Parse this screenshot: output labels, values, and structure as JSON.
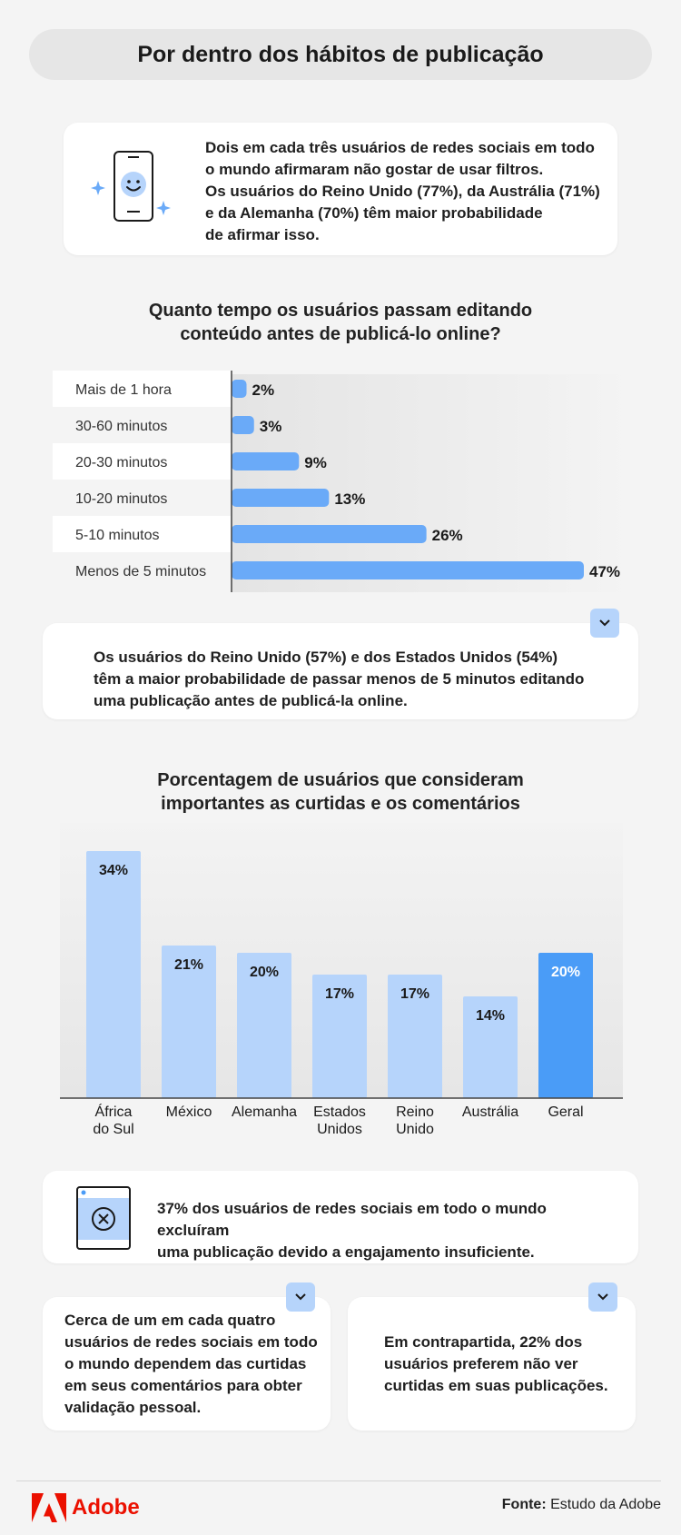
{
  "header": {
    "title": "Por dentro dos hábitos de publicação"
  },
  "intro": {
    "lines": [
      "Dois em cada três usuários de redes sociais em todo",
      "o mundo afirmaram não gostar de usar filtros.",
      "Os usuários do Reino Unido (77%), da Austrália (71%)",
      "e da Alemanha (70%) têm maior probabilidade",
      "de afirmar isso."
    ]
  },
  "editing_note": {
    "lines": [
      "Os usuários do Reino Unido (57%) e dos Estados Unidos (54%)",
      "têm a maior probabilidade de passar menos de 5 minutos editando",
      "uma publicação antes de publicá-la online."
    ]
  },
  "deletion": {
    "lines": [
      "37% dos usuários de redes sociais em todo o mundo excluíram",
      "uma publicação devido a engajamento insuficiente."
    ]
  },
  "validation": {
    "lines": [
      "Cerca de um em cada quatro",
      "usuários de redes sociais em todo",
      "o mundo dependem das curtidas",
      "em seus comentários para obter",
      "validação pessoal."
    ]
  },
  "preference": {
    "lines": [
      "Em contrapartida, 22% dos",
      "usuários preferem não ver",
      "curtidas em suas publicações."
    ]
  },
  "footer": {
    "brand": "Adobe",
    "source_label": "Fonte:",
    "source_value": "Estudo da Adobe"
  },
  "colors": {
    "bar_light": "#b6d4fb",
    "bar_accent": "#4a9cf7",
    "hbar": "#6aaaf8",
    "brand_red": "#eb1000"
  },
  "icons": [
    "phone-smile-icon",
    "sparkle-icon",
    "chevron-down-icon",
    "window-close-icon",
    "adobe-logo-icon"
  ],
  "chart_data": [
    {
      "type": "bar",
      "orientation": "horizontal",
      "title_lines": [
        "Quanto tempo os usuários passam editando",
        "conteúdo antes de publicá-lo online?"
      ],
      "categories": [
        "Mais de 1 hora",
        "30-60 minutos",
        "20-30 minutos",
        "10-20 minutos",
        "5-10 minutos",
        "Menos de 5 minutos"
      ],
      "values": [
        2,
        3,
        9,
        13,
        26,
        47
      ],
      "value_suffix": "%",
      "xlim": [
        0,
        47
      ]
    },
    {
      "type": "bar",
      "orientation": "vertical",
      "title_lines": [
        "Porcentagem de usuários que consideram",
        "importantes as curtidas e os comentários"
      ],
      "categories": [
        [
          "África",
          "do Sul"
        ],
        [
          "México"
        ],
        [
          "Alemanha"
        ],
        [
          "Estados",
          "Unidos"
        ],
        [
          "Reino",
          "Unido"
        ],
        [
          "Austrália"
        ],
        [
          "Geral"
        ]
      ],
      "values": [
        34,
        21,
        20,
        17,
        17,
        14,
        20
      ],
      "highlight": "Geral",
      "value_suffix": "%",
      "ylim": [
        0,
        34
      ]
    }
  ]
}
